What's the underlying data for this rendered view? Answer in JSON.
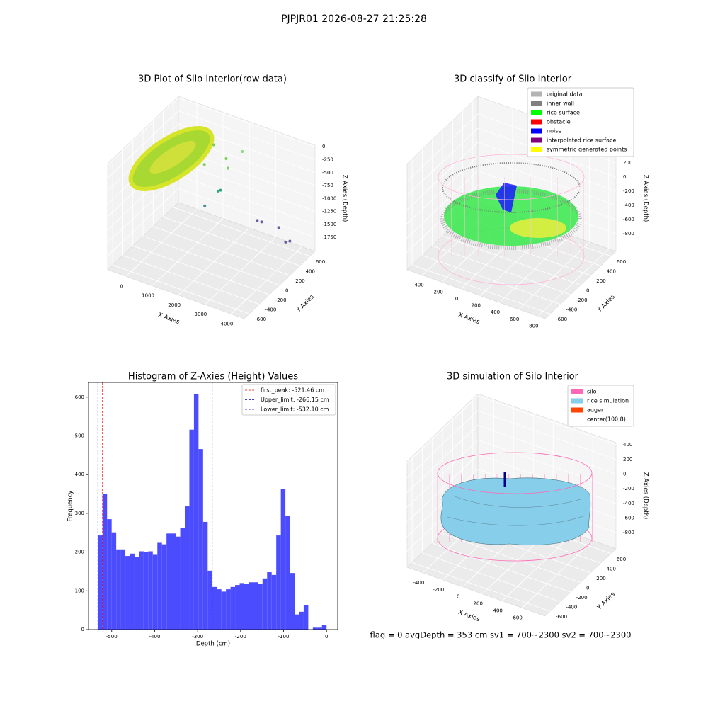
{
  "title": "PJPJR01 2026-08-27 21:25:28",
  "footer": "flag = 0     avgDepth = 353 cm  sv1 = 700~2300  sv2 = 700~2300",
  "chart_data": [
    {
      "type": "scatter3d",
      "title": "3D Plot of Silo Interior(row data)",
      "xlabel": "X Axies",
      "ylabel": "Y Axies",
      "zlabel": "Z Axies (Depth)",
      "xlim": [
        -700,
        4500
      ],
      "ylim": [
        -700,
        700
      ],
      "zlim": [
        -2020,
        30
      ],
      "xticks": [
        0,
        1000,
        2000,
        3000,
        4000
      ],
      "yticks": [
        -600,
        -400,
        -200,
        0,
        200,
        400,
        600
      ],
      "zticks": [
        0,
        -250,
        -500,
        -750,
        -1000,
        -1250,
        -1500,
        -1750
      ],
      "x": [
        3143,
        3304,
        3938,
        4261,
        4349,
        1853,
        1936,
        1980,
        1208,
        1952,
        2280,
        1520,
        2191
      ],
      "y": [
        263,
        265,
        272,
        242,
        280,
        -106,
        113,
        140,
        408,
        266,
        132,
        60,
        461
      ],
      "z": [
        -1265,
        -1265,
        -1265,
        -1460,
        -1460,
        -875,
        -777,
        -777,
        -290,
        -290,
        -290,
        -290,
        -290
      ],
      "colors": [
        "#6b5b9e",
        "#6b5b9e",
        "#6b5b9e",
        "#6b5b9e",
        "#6b5b9e",
        "#3f8f8a",
        "#2fa37e",
        "#2fa37e",
        "#7ad151",
        "#7ad151",
        "#7ad151",
        "#7ad151",
        "#8fd98a"
      ]
    },
    {
      "type": "scatter3d",
      "title": "3D classify of Silo Interior",
      "xlabel": "X Axies",
      "ylabel": "Y Axies",
      "zlabel": "Z Axies (Depth)",
      "xlim": [
        -560,
        875
      ],
      "ylim": [
        -700,
        700
      ],
      "zlim": [
        -1050,
        450
      ],
      "xticks": [
        -400,
        -200,
        0,
        200,
        400,
        600,
        800
      ],
      "yticks": [
        -600,
        -400,
        -200,
        0,
        200,
        400,
        600
      ],
      "zticks": [
        -800,
        -600,
        -400,
        -200,
        0,
        200
      ],
      "legend": [
        {
          "name": "original data",
          "color": "#b3b3b3"
        },
        {
          "name": "inner wall",
          "color": "#808080"
        },
        {
          "name": "rice surface",
          "color": "#00ff00"
        },
        {
          "name": "obstacle",
          "color": "#ff0000"
        },
        {
          "name": "noise",
          "color": "#0000ff"
        },
        {
          "name": "interpolated rice surface",
          "color": "#800080"
        },
        {
          "name": "symmetric generated points",
          "color": "#ffff00"
        }
      ]
    },
    {
      "type": "histogram",
      "title": "Histogram of Z-Axies (Height) Values",
      "xlabel": "Depth (cm)",
      "ylabel": "Frequency",
      "color": "#4c4cff",
      "xlim": [
        -554,
        26
      ],
      "ylim": [
        0,
        638
      ],
      "xticks": [
        -500,
        -400,
        -300,
        -200,
        -100,
        0
      ],
      "yticks": [
        0,
        100,
        200,
        300,
        400,
        500,
        600
      ],
      "bins": [
        -532.1,
        -521.46,
        -510.82,
        -500.17,
        -489.53,
        -478.89,
        -468.25,
        -457.61,
        -446.96,
        -436.32,
        -425.68,
        -415.04,
        -404.4,
        -393.75,
        -383.11,
        -372.47,
        -361.83,
        -351.19,
        -340.54,
        -329.9,
        -319.26,
        -308.62,
        -297.98,
        -287.33,
        -276.69,
        -266.05,
        -255.41,
        -244.77,
        -234.12,
        -223.48,
        -212.84,
        -202.2,
        -191.56,
        -180.91,
        -170.27,
        -159.63,
        -148.99,
        -138.35,
        -127.7,
        -117.06,
        -106.42,
        -95.78,
        -85.14,
        -74.49,
        -63.85,
        -53.21,
        -42.57,
        -31.93,
        -21.28,
        -10.64,
        0
      ],
      "counts": [
        243,
        350,
        285,
        251,
        207,
        207,
        190,
        196,
        188,
        202,
        200,
        202,
        193,
        224,
        220,
        248,
        248,
        240,
        262,
        318,
        516,
        607,
        466,
        278,
        152,
        110,
        104,
        98,
        104,
        110,
        115,
        120,
        118,
        122,
        122,
        118,
        132,
        148,
        141,
        243,
        362,
        294,
        146,
        39,
        46,
        64,
        0,
        5,
        5,
        12
      ],
      "vlines": [
        {
          "label": "first_peak: -521.46 cm",
          "value": -521.46,
          "color": "#ff0000"
        },
        {
          "label": "Upper_limit: -266.15 cm",
          "value": -266.15,
          "color": "#0000cc"
        },
        {
          "label": "Lower_limit: -532.10 cm",
          "value": -532.1,
          "color": "#0000cc"
        }
      ]
    },
    {
      "type": "surface3d",
      "title": "3D simulation of Silo Interior",
      "xlabel": "X Axies",
      "ylabel": "Y Axies",
      "zlabel": "Z Axies (Depth)",
      "xlim": [
        -560,
        835
      ],
      "ylim": [
        -700,
        700
      ],
      "zlim": [
        -1020,
        430
      ],
      "xticks": [
        -400,
        -200,
        0,
        200,
        400,
        600
      ],
      "yticks": [
        -600,
        -400,
        -200,
        0,
        200,
        400,
        600
      ],
      "zticks": [
        -800,
        -600,
        -400,
        -200,
        0,
        200,
        400
      ],
      "legend": [
        {
          "name": "silo",
          "color": "#ff69b4"
        },
        {
          "name": "rice simulation",
          "color": "#87ceeb"
        },
        {
          "name": "auger",
          "color": "#ff4500"
        },
        {
          "name": "center(100,8)",
          "color": "#ffffff"
        }
      ]
    }
  ]
}
